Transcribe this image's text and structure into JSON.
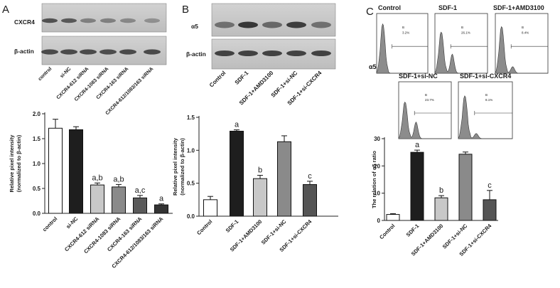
{
  "panels": [
    {
      "label": "A",
      "blot": {
        "rows": [
          "CXCR4",
          "β-actin"
        ],
        "lanes": [
          "control",
          "si-NC",
          "CXCR4-612 siRNA",
          "CXCR4-1083 siRNA",
          "CXCR4-163 siRNA",
          "CXCR4-612/1083/163 siRNA"
        ]
      }
    },
    {
      "label": "B",
      "blot": {
        "rows": [
          "α5",
          "β-actin"
        ],
        "lanes": [
          "Control",
          "SDF-1",
          "SDF-1+AMD3100",
          "SDF-1+si-NC",
          "SDF-1+si-CXCR4"
        ]
      }
    },
    {
      "label": "C",
      "flow": {
        "row_label": "α5",
        "plots": [
          {
            "title": "Control",
            "gate": "B",
            "pct": "3.2%"
          },
          {
            "title": "SDF-1",
            "gate": "B",
            "pct": "26.1%"
          },
          {
            "title": "SDF-1+AMD3100",
            "gate": "B",
            "pct": "8.4%"
          },
          {
            "title": "SDF-1+si-NC",
            "gate": "B",
            "pct": "23.7%"
          },
          {
            "title": "SDF-1+si-CXCR4",
            "gate": "B",
            "pct": "8.1%"
          }
        ]
      }
    }
  ],
  "chart_data": [
    {
      "type": "bar",
      "panel": "A",
      "categories": [
        "control",
        "si-NC",
        "CXCR4-612 siRNA",
        "CXCR4-1083 siRNA",
        "CXCR4-163 siRNA",
        "CXCR4-612/1083/163 siRNA"
      ],
      "values": [
        1.71,
        1.68,
        0.57,
        0.53,
        0.31,
        0.17
      ],
      "errors": [
        0.18,
        0.06,
        0.04,
        0.05,
        0.05,
        0.02
      ],
      "annotations": [
        "",
        "",
        "a,b",
        "a,b",
        "a,c",
        "a"
      ],
      "colors": [
        "#ffffff",
        "#1e1e1e",
        "#c8c8c8",
        "#8a8a8a",
        "#5a5a5a",
        "#333333"
      ],
      "ylabel": "Relative pixel intensity\n(normalized to β-actin)",
      "ylim": [
        0,
        2.0
      ],
      "yticks": [
        "0.0",
        "0.5",
        "1.0",
        "1.5",
        "2.0"
      ]
    },
    {
      "type": "bar",
      "panel": "B",
      "categories": [
        "Control",
        "SDF-1",
        "SDF-1+AMD3100",
        "SDF-1+si-NC",
        "SDF-1+si-CXCR4"
      ],
      "values": [
        0.25,
        1.29,
        0.57,
        1.13,
        0.48
      ],
      "errors": [
        0.05,
        0.02,
        0.05,
        0.09,
        0.05
      ],
      "annotations": [
        "",
        "a",
        "b",
        "",
        "c"
      ],
      "colors": [
        "#ffffff",
        "#1e1e1e",
        "#c8c8c8",
        "#8a8a8a",
        "#555555"
      ],
      "ylabel": "Relative pixel intensity\n(normalized to β-actin)",
      "ylim": [
        0,
        1.5
      ],
      "yticks": [
        "0.0",
        "0.5",
        "1.0",
        "1.5"
      ]
    },
    {
      "type": "bar",
      "panel": "C",
      "categories": [
        "Control",
        "SDF-1",
        "SDF-1+AMD3100",
        "SDF-1+si-NC",
        "SDF-1+si-CXCR4"
      ],
      "values": [
        2.2,
        25.0,
        8.3,
        24.3,
        7.6
      ],
      "errors": [
        0.3,
        0.8,
        0.8,
        0.8,
        3.4
      ],
      "annotations": [
        "",
        "a",
        "b",
        "",
        "c"
      ],
      "colors": [
        "#ffffff",
        "#1e1e1e",
        "#c8c8c8",
        "#8a8a8a",
        "#555555"
      ],
      "ylabel": "The relation of α5 ratio",
      "ylim": [
        0,
        30
      ],
      "yticks": [
        "0",
        "10",
        "20",
        "30"
      ]
    }
  ]
}
